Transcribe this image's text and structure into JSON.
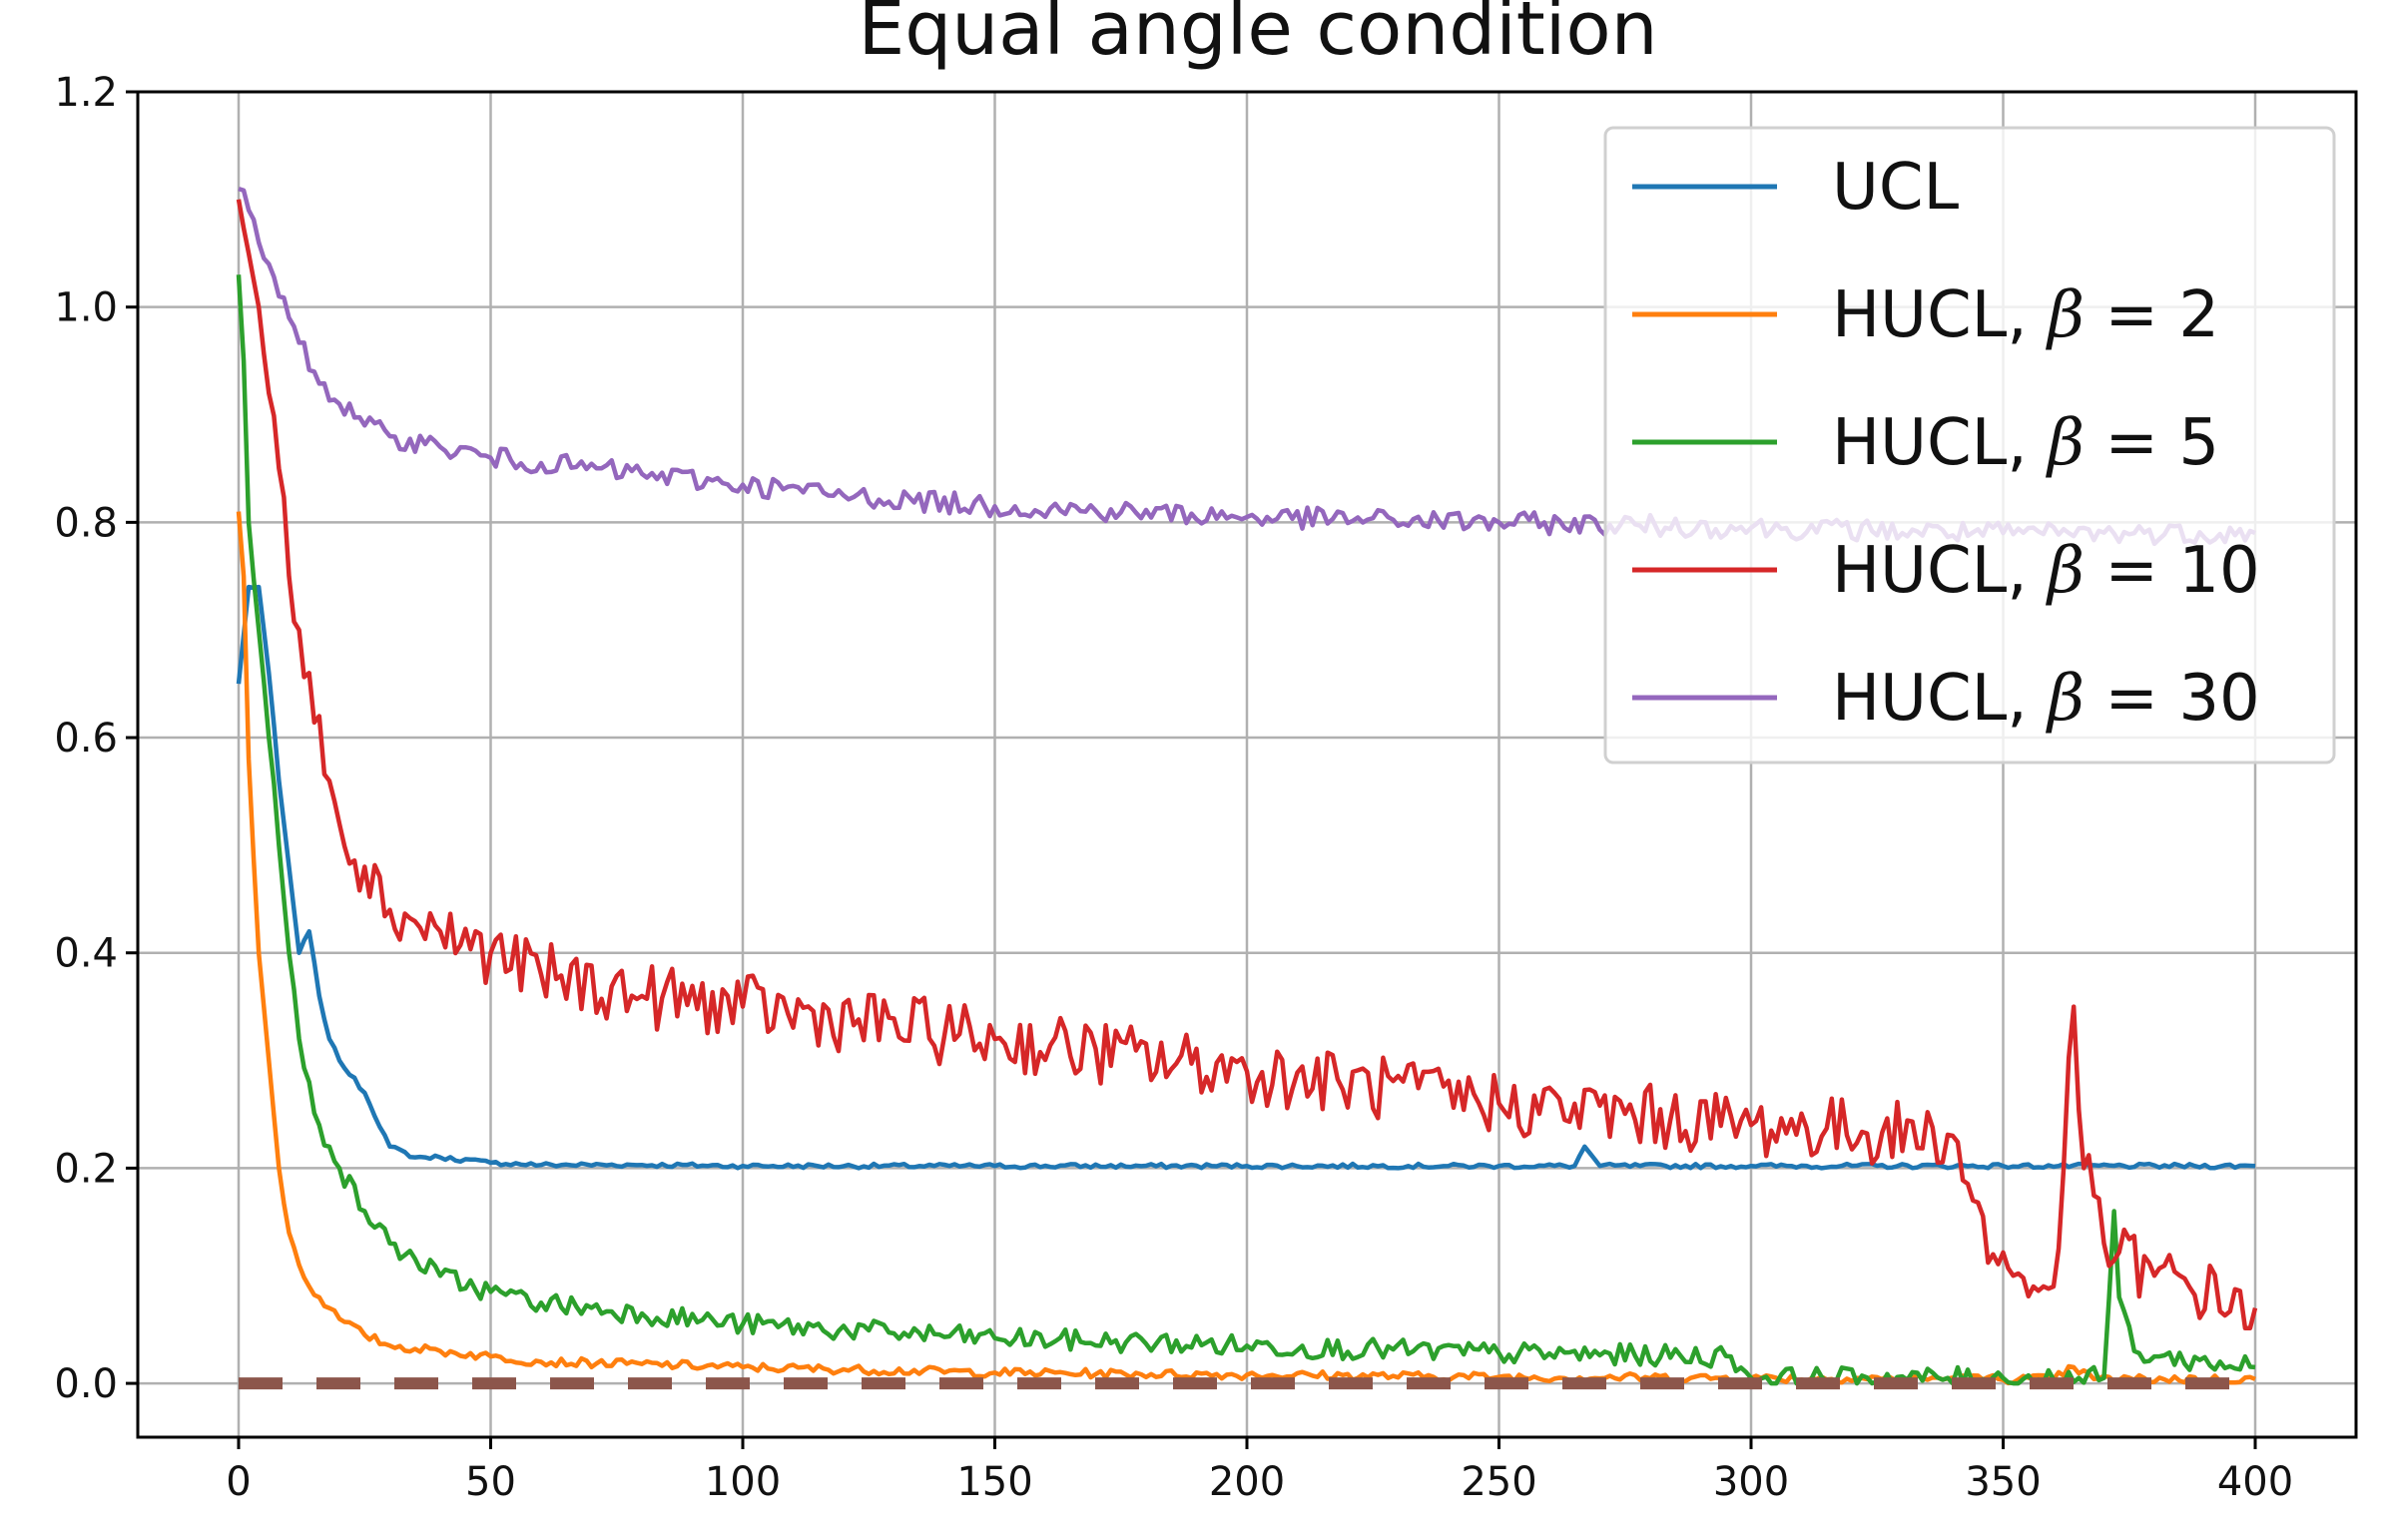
{
  "chart_data": {
    "type": "line",
    "title": "Equal angle condition",
    "xlabel": "",
    "ylabel": "",
    "xlim": [
      -20,
      420
    ],
    "ylim": [
      -0.05,
      1.2
    ],
    "xticks": [
      0,
      50,
      100,
      150,
      200,
      250,
      300,
      350,
      400
    ],
    "yticks": [
      0.0,
      0.2,
      0.4,
      0.6,
      0.8,
      1.0,
      1.2
    ],
    "xtick_labels": [
      "0",
      "50",
      "100",
      "150",
      "200",
      "250",
      "300",
      "350",
      "400"
    ],
    "ytick_labels": [
      "0.0",
      "0.2",
      "0.4",
      "0.6",
      "0.8",
      "1.0",
      "1.2"
    ],
    "grid": true,
    "legend_position": "top-right",
    "series": [
      {
        "name": "UCL",
        "legend_prefix": "UCL",
        "legend_beta": "",
        "color": "#1f77b4",
        "noise": 0.002,
        "x": [
          0,
          2,
          4,
          6,
          8,
          10,
          12,
          14,
          16,
          18,
          20,
          25,
          30,
          35,
          40,
          50,
          60,
          80,
          100,
          150,
          200,
          250,
          265,
          267,
          270,
          300,
          350,
          400
        ],
        "y": [
          0.65,
          0.74,
          0.74,
          0.66,
          0.56,
          0.48,
          0.4,
          0.42,
          0.36,
          0.32,
          0.3,
          0.27,
          0.22,
          0.21,
          0.21,
          0.205,
          0.203,
          0.203,
          0.202,
          0.202,
          0.202,
          0.202,
          0.202,
          0.22,
          0.202,
          0.202,
          0.202,
          0.202
        ]
      },
      {
        "name": "HUCL, β = 2",
        "legend_prefix": "HUCL, ",
        "legend_beta": "2",
        "color": "#ff7f0e",
        "noise": 0.004,
        "x": [
          0,
          1,
          2,
          4,
          6,
          8,
          10,
          12,
          14,
          16,
          18,
          20,
          25,
          30,
          40,
          50,
          60,
          80,
          100,
          150,
          200,
          250,
          300,
          360,
          364,
          368,
          400
        ],
        "y": [
          0.81,
          0.75,
          0.58,
          0.4,
          0.3,
          0.2,
          0.14,
          0.11,
          0.09,
          0.08,
          0.07,
          0.06,
          0.045,
          0.035,
          0.03,
          0.025,
          0.02,
          0.018,
          0.015,
          0.01,
          0.008,
          0.006,
          0.005,
          0.004,
          0.015,
          0.004,
          0.004
        ]
      },
      {
        "name": "HUCL, β = 5",
        "legend_prefix": "HUCL, ",
        "legend_beta": "5",
        "color": "#2ca02c",
        "noise": 0.01,
        "x": [
          0,
          1,
          2,
          4,
          6,
          8,
          10,
          12,
          14,
          16,
          18,
          20,
          25,
          30,
          40,
          50,
          60,
          80,
          100,
          150,
          200,
          250,
          296,
          300,
          350,
          370,
          372,
          373,
          376,
          380,
          400
        ],
        "y": [
          1.03,
          0.95,
          0.8,
          0.7,
          0.6,
          0.5,
          0.4,
          0.32,
          0.28,
          0.24,
          0.22,
          0.2,
          0.16,
          0.13,
          0.1,
          0.085,
          0.075,
          0.065,
          0.055,
          0.042,
          0.035,
          0.028,
          0.025,
          0.005,
          0.005,
          0.005,
          0.16,
          0.08,
          0.03,
          0.025,
          0.015
        ]
      },
      {
        "name": "HUCL, β = 10",
        "legend_prefix": "HUCL, ",
        "legend_beta": "10",
        "color": "#d62728",
        "noise": 0.03,
        "x": [
          0,
          2,
          4,
          6,
          8,
          10,
          12,
          14,
          16,
          18,
          20,
          25,
          30,
          40,
          50,
          60,
          80,
          100,
          150,
          200,
          250,
          300,
          340,
          344,
          348,
          352,
          356,
          360,
          362,
          364,
          366,
          370,
          380,
          400
        ],
        "y": [
          1.1,
          1.05,
          1.0,
          0.92,
          0.85,
          0.75,
          0.7,
          0.66,
          0.62,
          0.56,
          0.52,
          0.48,
          0.44,
          0.42,
          0.4,
          0.38,
          0.36,
          0.35,
          0.32,
          0.29,
          0.26,
          0.24,
          0.23,
          0.17,
          0.12,
          0.1,
          0.09,
          0.09,
          0.2,
          0.35,
          0.2,
          0.13,
          0.1,
          0.07
        ]
      },
      {
        "name": "HUCL, β = 30",
        "legend_prefix": "HUCL, ",
        "legend_beta": "30",
        "color": "#9467bd",
        "noise": 0.01,
        "x": [
          0,
          2,
          4,
          6,
          8,
          10,
          15,
          20,
          25,
          30,
          40,
          50,
          60,
          80,
          100,
          120,
          150,
          200,
          250,
          300,
          350,
          400
        ],
        "y": [
          1.11,
          1.09,
          1.06,
          1.04,
          1.01,
          0.99,
          0.94,
          0.91,
          0.89,
          0.88,
          0.87,
          0.86,
          0.855,
          0.845,
          0.835,
          0.825,
          0.815,
          0.805,
          0.8,
          0.795,
          0.79,
          0.79
        ]
      },
      {
        "name": "",
        "legend_prefix": "",
        "legend_beta": "",
        "color": "#8c564b",
        "dashed": true,
        "noise": 0,
        "x": [
          0,
          400
        ],
        "y": [
          0,
          0
        ]
      }
    ]
  }
}
